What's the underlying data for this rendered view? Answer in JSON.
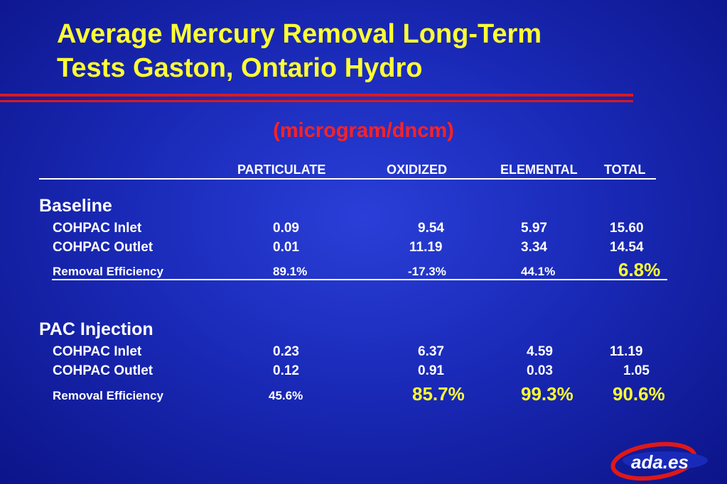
{
  "title_line1": "Average Mercury Removal Long-Term",
  "title_line2": "Tests Gaston, Ontario Hydro",
  "unit": "(microgram/dncm)",
  "columns": [
    "PARTICULATE",
    "OXIDIZED",
    "ELEMENTAL",
    "TOTAL"
  ],
  "baseline": {
    "label": "Baseline",
    "inlet": {
      "label": "COHPAC Inlet",
      "values": [
        "0.09",
        "9.54",
        "5.97",
        "15.60"
      ]
    },
    "outlet": {
      "label": "COHPAC Outlet",
      "values": [
        "0.01",
        "11.19",
        "3.34",
        "14.54"
      ]
    },
    "removal": {
      "label": "Removal Efficiency",
      "values": [
        "89.1%",
        "-17.3%",
        "44.1%",
        "6.8%"
      ]
    }
  },
  "pac": {
    "label": "PAC Injection",
    "inlet": {
      "label": "COHPAC Inlet",
      "values": [
        "0.23",
        "6.37",
        "4.59",
        "11.19"
      ]
    },
    "outlet": {
      "label": "COHPAC Outlet",
      "values": [
        "0.12",
        "0.91",
        "0.03",
        "1.05"
      ]
    },
    "removal": {
      "label": "Removal Efficiency",
      "values": [
        "45.6%",
        "85.7%",
        "99.3%",
        "90.6%"
      ]
    }
  },
  "logo_text": "ada.es",
  "colors": {
    "title": "#ffff33",
    "unit": "#ff2222",
    "rule": "#e01818",
    "background": "#1a2ab8"
  }
}
